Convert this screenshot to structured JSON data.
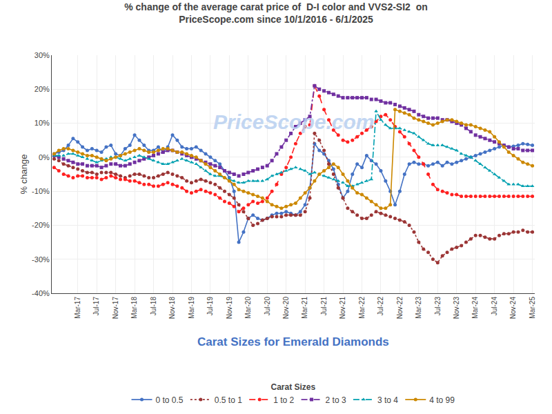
{
  "chart_data": {
    "type": "line",
    "title": "% change of the average carat price of  D-I color and VVS2-SI2  on\nPriceScope.com since 10/1/2016 - 6/1/2025",
    "subtitle": "Carat Sizes for Emerald Diamonds",
    "legend_title": "Carat Sizes",
    "annotations": [
      "PriceScope.com"
    ],
    "ylabel": "% change",
    "ylim": [
      -40,
      30
    ],
    "yticks": [
      {
        "value": -40,
        "label": "-40%"
      },
      {
        "value": -30,
        "label": "-30%"
      },
      {
        "value": -20,
        "label": "-20%"
      },
      {
        "value": -10,
        "label": "-10%"
      },
      {
        "value": 0,
        "label": "0%"
      },
      {
        "value": 10,
        "label": "10%"
      },
      {
        "value": 20,
        "label": "20%"
      },
      {
        "value": 30,
        "label": "30%"
      }
    ],
    "grid": true,
    "legend": "bottom",
    "categories": [
      null,
      null,
      null,
      null,
      null,
      "Mar-17",
      null,
      null,
      null,
      "Jul-17",
      null,
      null,
      null,
      "Nov-17",
      null,
      null,
      null,
      "Mar-18",
      null,
      null,
      null,
      "Jul-18",
      null,
      null,
      null,
      "Nov-18",
      null,
      null,
      null,
      "Mar-19",
      null,
      null,
      null,
      "Jul-19",
      null,
      null,
      null,
      "Nov-19",
      null,
      null,
      null,
      "Mar-20",
      null,
      null,
      null,
      "Jul-20",
      null,
      null,
      null,
      "Nov-20",
      null,
      null,
      null,
      "Mar-21",
      null,
      null,
      null,
      "Jul-21",
      null,
      null,
      null,
      "Nov-21",
      null,
      null,
      null,
      "Mar-22",
      null,
      null,
      null,
      "Jul-22",
      null,
      null,
      null,
      "Nov-22",
      null,
      null,
      null,
      "Mar-23",
      null,
      null,
      null,
      "Jul-23",
      null,
      null,
      null,
      "Nov-23",
      null,
      null,
      null,
      "Mar-24",
      null,
      null,
      null,
      "Jul-24",
      null,
      null,
      null,
      "Nov-24",
      null,
      null,
      null,
      "Mar-25"
    ],
    "series": [
      {
        "name": "0 to 0.5",
        "color": "#4472C4",
        "line_style": "solid",
        "marker": "circle",
        "values": [
          1.0,
          1.5,
          2.0,
          3.5,
          5.5,
          4.5,
          3.0,
          2.0,
          2.5,
          2.0,
          1.5,
          3.0,
          3.5,
          1.0,
          0.5,
          2.5,
          3.5,
          6.5,
          5.0,
          3.5,
          2.0,
          2.0,
          3.0,
          1.5,
          3.0,
          6.5,
          5.0,
          3.0,
          2.5,
          2.5,
          3.0,
          2.0,
          1.0,
          0.0,
          -1.0,
          -2.0,
          -4.0,
          -6.0,
          -10.0,
          -25.0,
          -22.0,
          -18.0,
          -17.0,
          -18.0,
          -18.5,
          -18.0,
          -17.0,
          -16.5,
          -16.5,
          -16.0,
          -16.5,
          -17.0,
          -16.0,
          -14.0,
          -9.0,
          4.0,
          2.0,
          1.0,
          -1.0,
          -3.5,
          -8.0,
          -12.0,
          -10.0,
          -5.0,
          -2.0,
          -3.0,
          0.5,
          -1.0,
          -2.0,
          -4.0,
          -7.0,
          -10.0,
          -14.0,
          -10.0,
          -5.0,
          -2.0,
          -1.5,
          -2.0,
          -2.0,
          -2.5,
          -2.0,
          -1.5,
          -2.5,
          -1.5,
          -2.0,
          -1.5,
          -1.0,
          -0.5,
          0.0,
          0.5,
          1.0,
          1.5,
          2.0,
          2.5,
          3.0,
          3.5,
          3.0,
          3.2,
          3.5,
          4.0,
          3.8,
          3.5
        ]
      },
      {
        "name": "0.5 to 1",
        "color": "#9B3535",
        "line_style": "dotted",
        "marker": "circle",
        "values": [
          -0.5,
          -1.0,
          -2.0,
          -2.5,
          -3.0,
          -3.5,
          -4.0,
          -4.5,
          -4.5,
          -5.0,
          -4.5,
          -4.5,
          -4.5,
          -5.0,
          -5.5,
          -6.0,
          -5.5,
          -5.0,
          -5.0,
          -5.5,
          -6.0,
          -6.0,
          -5.5,
          -5.0,
          -4.5,
          -5.0,
          -5.5,
          -6.0,
          -7.0,
          -7.5,
          -7.0,
          -6.5,
          -7.0,
          -7.5,
          -8.0,
          -9.0,
          -10.0,
          -11.0,
          -12.0,
          -14.0,
          -16.0,
          -18.0,
          -20.0,
          -19.5,
          -18.5,
          -18.0,
          -17.5,
          -17.5,
          -17.5,
          -17.0,
          -17.0,
          -17.0,
          -17.0,
          -16.0,
          -12.0,
          7.0,
          5.0,
          2.0,
          -2.0,
          -5.0,
          -9.0,
          -12.0,
          -15.0,
          -16.0,
          -17.0,
          -18.0,
          -18.0,
          -17.0,
          -16.0,
          -16.5,
          -17.0,
          -17.5,
          -18.0,
          -18.5,
          -19.0,
          -20.0,
          -22.0,
          -25.0,
          -27.0,
          -28.0,
          -30.0,
          -31.0,
          -29.0,
          -28.0,
          -27.0,
          -26.5,
          -26.0,
          -25.0,
          -24.0,
          -23.0,
          -23.0,
          -23.5,
          -24.0,
          -24.0,
          -23.0,
          -22.5,
          -22.5,
          -22.0,
          -22.0,
          -21.5,
          -22.0,
          -22.0
        ]
      },
      {
        "name": "1 to 2",
        "color": "#FF2020",
        "line_style": "dashed",
        "marker": "circle",
        "values": [
          -3.0,
          -4.0,
          -5.0,
          -5.5,
          -6.0,
          -5.5,
          -5.5,
          -6.0,
          -6.0,
          -6.0,
          -6.5,
          -6.0,
          -5.5,
          -6.0,
          -6.5,
          -6.5,
          -7.0,
          -7.0,
          -7.5,
          -8.0,
          -8.0,
          -8.5,
          -8.5,
          -8.0,
          -7.5,
          -8.0,
          -8.5,
          -9.0,
          -10.0,
          -10.5,
          -10.0,
          -9.5,
          -10.0,
          -10.5,
          -11.0,
          -12.0,
          -13.0,
          -13.5,
          -14.5,
          -16.0,
          -15.0,
          -14.0,
          -13.0,
          -13.5,
          -13.0,
          -12.0,
          -10.0,
          -8.0,
          -5.0,
          -3.0,
          0.0,
          4.0,
          7.0,
          9.0,
          9.5,
          21.0,
          18.0,
          14.0,
          11.0,
          8.0,
          6.5,
          5.0,
          4.5,
          5.0,
          6.0,
          7.0,
          8.0,
          9.0,
          10.5,
          12.0,
          12.5,
          11.0,
          9.0,
          7.5,
          6.0,
          4.0,
          2.0,
          0.0,
          -2.0,
          -5.0,
          -8.0,
          -9.5,
          -10.0,
          -10.5,
          -11.0,
          -11.0,
          -11.5,
          -11.5,
          -11.5,
          -11.5,
          -11.5,
          -11.5,
          -11.5,
          -11.5,
          -11.5,
          -11.5,
          -11.5,
          -11.5,
          -11.5,
          -11.5,
          -11.5,
          -11.5
        ]
      },
      {
        "name": "2 to 3",
        "color": "#7030A0",
        "line_style": "dashdot",
        "marker": "square",
        "values": [
          0.5,
          0.0,
          -0.5,
          -1.0,
          -1.5,
          -2.0,
          -2.0,
          -2.5,
          -2.5,
          -2.5,
          -3.0,
          -2.5,
          -2.0,
          -2.0,
          -2.5,
          -2.5,
          -2.0,
          -1.5,
          -1.0,
          -0.5,
          0.0,
          0.5,
          1.0,
          1.5,
          2.0,
          2.0,
          1.5,
          1.0,
          0.5,
          0.0,
          -0.5,
          -1.0,
          -1.5,
          -2.0,
          -2.5,
          -3.0,
          -4.0,
          -4.5,
          -5.0,
          -5.5,
          -5.0,
          -4.5,
          -4.0,
          -3.5,
          -3.0,
          -2.5,
          -1.0,
          1.0,
          3.0,
          5.0,
          7.0,
          9.0,
          10.0,
          11.0,
          12.0,
          21.0,
          20.0,
          19.5,
          19.0,
          18.5,
          18.0,
          17.5,
          17.5,
          17.5,
          17.5,
          17.5,
          17.5,
          17.0,
          17.0,
          16.5,
          16.0,
          16.0,
          15.5,
          15.0,
          14.5,
          14.0,
          13.5,
          12.5,
          12.0,
          11.5,
          11.5,
          11.5,
          11.0,
          11.0,
          10.5,
          10.0,
          9.5,
          8.5,
          7.5,
          6.5,
          6.0,
          5.5,
          5.0,
          4.5,
          4.0,
          3.5,
          3.0,
          2.5,
          2.5,
          2.0,
          2.0,
          2.0
        ]
      },
      {
        "name": "3 to 4",
        "color": "#00A0B0",
        "line_style": "dashdot",
        "marker": "triangle-up",
        "values": [
          0.5,
          0.5,
          0.5,
          1.0,
          1.0,
          0.5,
          0.0,
          -0.5,
          -1.0,
          -1.5,
          -1.0,
          -0.5,
          0.0,
          0.0,
          -0.5,
          -1.0,
          -0.5,
          0.0,
          0.5,
          0.0,
          -0.5,
          -1.0,
          -1.5,
          -2.0,
          -2.0,
          -1.5,
          -1.0,
          -0.5,
          -1.0,
          -1.5,
          -2.0,
          -3.0,
          -4.0,
          -5.0,
          -5.5,
          -5.5,
          -6.0,
          -6.5,
          -7.0,
          -7.5,
          -7.5,
          -7.0,
          -7.0,
          -7.0,
          -7.0,
          -6.5,
          -5.5,
          -5.0,
          -4.5,
          -4.0,
          -3.5,
          -3.0,
          -3.5,
          -4.0,
          -5.0,
          -4.5,
          -5.0,
          -5.5,
          -6.0,
          -6.5,
          -7.0,
          -7.5,
          -8.5,
          -8.5,
          -8.0,
          -7.5,
          -7.0,
          -6.5,
          13.5,
          11.0,
          9.5,
          8.5,
          8.5,
          8.5,
          8.0,
          7.5,
          7.0,
          6.0,
          5.0,
          4.0,
          3.5,
          3.5,
          3.5,
          3.0,
          2.5,
          2.0,
          1.0,
          0.5,
          0.0,
          -1.0,
          -2.0,
          -3.0,
          -4.0,
          -5.0,
          -6.0,
          -7.0,
          -8.0,
          -8.0,
          -8.0,
          -8.5,
          -8.5,
          -8.5
        ]
      },
      {
        "name": "4 to 99",
        "color": "#CC8800",
        "line_style": "solid",
        "marker": "circle",
        "values": [
          1.0,
          2.0,
          2.5,
          2.5,
          2.0,
          1.5,
          1.0,
          0.5,
          0.5,
          0.0,
          -0.5,
          -1.0,
          -0.5,
          0.0,
          0.5,
          1.0,
          1.5,
          2.0,
          2.5,
          2.0,
          1.5,
          1.5,
          2.0,
          2.5,
          2.5,
          2.0,
          1.5,
          1.5,
          1.0,
          0.5,
          0.0,
          -1.0,
          -2.0,
          -3.0,
          -4.0,
          -5.0,
          -6.0,
          -7.0,
          -8.0,
          -9.5,
          -10.0,
          -10.5,
          -11.0,
          -11.5,
          -12.0,
          -13.0,
          -14.0,
          -14.5,
          -15.0,
          -14.5,
          -14.0,
          -13.5,
          -12.0,
          -10.5,
          -9.0,
          -7.0,
          -5.0,
          -4.0,
          -3.0,
          -2.0,
          -3.0,
          -5.0,
          -7.0,
          -9.0,
          -10.5,
          -11.0,
          -12.0,
          -13.0,
          -14.0,
          -15.0,
          -15.0,
          -14.0,
          14.0,
          13.5,
          13.0,
          12.5,
          11.5,
          11.0,
          10.5,
          10.0,
          9.5,
          10.0,
          10.5,
          11.0,
          11.0,
          10.5,
          10.0,
          9.5,
          9.5,
          9.0,
          8.5,
          8.0,
          7.5,
          6.0,
          4.5,
          3.0,
          1.5,
          0.5,
          -0.5,
          -1.5,
          -2.0,
          -2.5
        ]
      }
    ]
  }
}
